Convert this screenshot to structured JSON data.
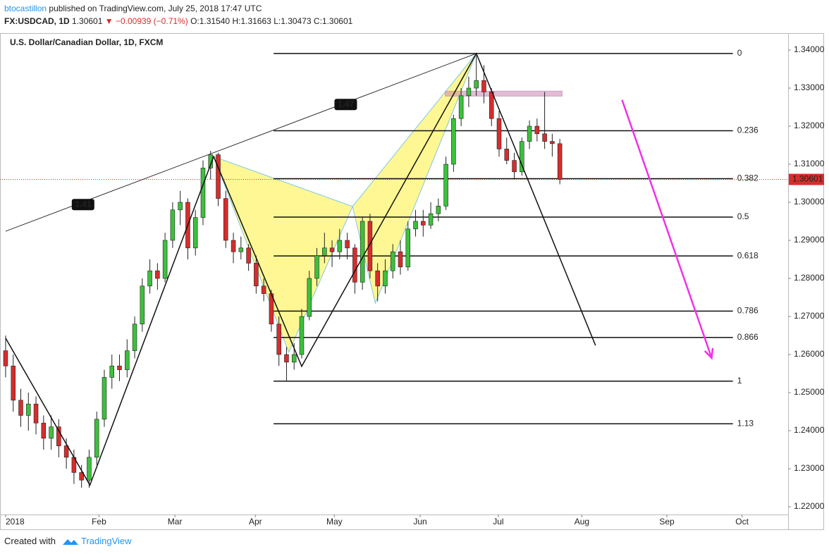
{
  "header": {
    "author": "btocastillon",
    "published": "published on TradingView.com, July 25, 2018 17:47 UTC",
    "symbol": "FX:USDCAD, 1D",
    "last": "1.30601",
    "change": "▼ −0.00939 (−0.71%)",
    "open": "O:1.31540",
    "high": "H:1.31663",
    "low": "L:1.30473",
    "close": "C:1.30601"
  },
  "footer": {
    "created": "Created with",
    "brand": "TradingView"
  },
  "chart_data": {
    "type": "candlestick",
    "title": "U.S. Dollar/Canadian Dollar, 1D, FXCM",
    "up_color": "#3cc03c",
    "down_color": "#d82c2c",
    "xlim": [
      -0.74,
      103.07
    ],
    "ylim": [
      1.21796,
      1.34426
    ],
    "xticks": [
      {
        "value": 0,
        "label": "2018"
      },
      {
        "value": 12.3,
        "label": "Feb"
      },
      {
        "value": 22.3,
        "label": "Mar"
      },
      {
        "value": 32.9,
        "label": "Apr"
      },
      {
        "value": 43.3,
        "label": "May"
      },
      {
        "value": 54.6,
        "label": "Jun"
      },
      {
        "value": 64.9,
        "label": "Jul"
      },
      {
        "value": 75.9,
        "label": "Aug"
      },
      {
        "value": 87.1,
        "label": "Sep"
      },
      {
        "value": 97,
        "label": "Oct"
      }
    ],
    "yticks": [
      {
        "value": 1.22,
        "label": "1.22000"
      },
      {
        "value": 1.23,
        "label": "1.23000"
      },
      {
        "value": 1.24,
        "label": "1.24000"
      },
      {
        "value": 1.25,
        "label": "1.25000"
      },
      {
        "value": 1.26,
        "label": "1.26000"
      },
      {
        "value": 1.27,
        "label": "1.27000"
      },
      {
        "value": 1.28,
        "label": "1.28000"
      },
      {
        "value": 1.29,
        "label": "1.29000"
      },
      {
        "value": 1.3,
        "label": "1.30000"
      },
      {
        "value": 1.31,
        "label": "1.31000"
      },
      {
        "value": 1.32,
        "label": "1.32000"
      },
      {
        "value": 1.33,
        "label": "1.33000"
      },
      {
        "value": 1.34,
        "label": "1.34000"
      }
    ],
    "ohlc": [
      [
        1.261,
        1.265,
        1.254,
        1.257
      ],
      [
        1.257,
        1.26,
        1.245,
        1.248
      ],
      [
        1.248,
        1.251,
        1.241,
        1.244
      ],
      [
        1.244,
        1.25,
        1.24,
        1.247
      ],
      [
        1.247,
        1.249,
        1.239,
        1.242
      ],
      [
        1.242,
        1.244,
        1.235,
        1.238
      ],
      [
        1.238,
        1.244,
        1.235,
        1.241
      ],
      [
        1.241,
        1.243,
        1.233,
        1.236
      ],
      [
        1.236,
        1.238,
        1.23,
        1.233
      ],
      [
        1.233,
        1.235,
        1.226,
        1.229
      ],
      [
        1.229,
        1.231,
        1.225,
        1.227
      ],
      [
        1.227,
        1.235,
        1.225,
        1.233
      ],
      [
        1.233,
        1.245,
        1.231,
        1.243
      ],
      [
        1.243,
        1.256,
        1.241,
        1.254
      ],
      [
        1.254,
        1.26,
        1.251,
        1.257
      ],
      [
        1.257,
        1.26,
        1.253,
        1.256
      ],
      [
        1.256,
        1.264,
        1.254,
        1.261
      ],
      [
        1.261,
        1.27,
        1.259,
        1.268
      ],
      [
        1.268,
        1.28,
        1.266,
        1.278
      ],
      [
        1.278,
        1.285,
        1.276,
        1.282
      ],
      [
        1.282,
        1.284,
        1.277,
        1.28
      ],
      [
        1.28,
        1.292,
        1.279,
        1.29
      ],
      [
        1.29,
        1.3,
        1.288,
        1.298
      ],
      [
        1.298,
        1.303,
        1.294,
        1.3
      ],
      [
        1.3,
        1.301,
        1.285,
        1.288
      ],
      [
        1.288,
        1.298,
        1.286,
        1.296
      ],
      [
        1.296,
        1.311,
        1.294,
        1.309
      ],
      [
        1.309,
        1.3135,
        1.306,
        1.3125
      ],
      [
        1.3125,
        1.313,
        1.299,
        1.301
      ],
      [
        1.301,
        1.303,
        1.288,
        1.29
      ],
      [
        1.29,
        1.292,
        1.284,
        1.287
      ],
      [
        1.287,
        1.291,
        1.285,
        1.288
      ],
      [
        1.288,
        1.289,
        1.282,
        1.284
      ],
      [
        1.284,
        1.286,
        1.276,
        1.278
      ],
      [
        1.278,
        1.28,
        1.274,
        1.276
      ],
      [
        1.276,
        1.277,
        1.266,
        1.268
      ],
      [
        1.268,
        1.27,
        1.257,
        1.26
      ],
      [
        1.26,
        1.262,
        1.253,
        1.258
      ],
      [
        1.258,
        1.263,
        1.256,
        1.26
      ],
      [
        1.26,
        1.272,
        1.259,
        1.27
      ],
      [
        1.27,
        1.282,
        1.269,
        1.28
      ],
      [
        1.28,
        1.288,
        1.278,
        1.286
      ],
      [
        1.286,
        1.292,
        1.284,
        1.288
      ],
      [
        1.288,
        1.29,
        1.283,
        1.287
      ],
      [
        1.287,
        1.293,
        1.285,
        1.29
      ],
      [
        1.29,
        1.292,
        1.285,
        1.288
      ],
      [
        1.288,
        1.289,
        1.276,
        1.279
      ],
      [
        1.279,
        1.296,
        1.277,
        1.295
      ],
      [
        1.295,
        1.297,
        1.28,
        1.282
      ],
      [
        1.282,
        1.284,
        1.274,
        1.278
      ],
      [
        1.278,
        1.285,
        1.276,
        1.282
      ],
      [
        1.282,
        1.289,
        1.28,
        1.287
      ],
      [
        1.287,
        1.29,
        1.281,
        1.283
      ],
      [
        1.283,
        1.295,
        1.282,
        1.293
      ],
      [
        1.293,
        1.298,
        1.291,
        1.295
      ],
      [
        1.295,
        1.298,
        1.291,
        1.294
      ],
      [
        1.294,
        1.3,
        1.293,
        1.297
      ],
      [
        1.297,
        1.301,
        1.295,
        1.299
      ],
      [
        1.299,
        1.312,
        1.298,
        1.31
      ],
      [
        1.31,
        1.323,
        1.308,
        1.322
      ],
      [
        1.322,
        1.33,
        1.32,
        1.328
      ],
      [
        1.328,
        1.333,
        1.325,
        1.33
      ],
      [
        1.33,
        1.3386,
        1.328,
        1.332
      ],
      [
        1.332,
        1.336,
        1.326,
        1.329
      ],
      [
        1.329,
        1.33,
        1.32,
        1.322
      ],
      [
        1.322,
        1.324,
        1.312,
        1.314
      ],
      [
        1.314,
        1.317,
        1.31,
        1.311
      ],
      [
        1.311,
        1.313,
        1.306,
        1.308
      ],
      [
        1.308,
        1.317,
        1.307,
        1.316
      ],
      [
        1.316,
        1.3215,
        1.314,
        1.32
      ],
      [
        1.32,
        1.322,
        1.316,
        1.318
      ],
      [
        1.318,
        1.329,
        1.314,
        1.316
      ],
      [
        1.316,
        1.318,
        1.312,
        1.3154
      ],
      [
        1.3154,
        1.31663,
        1.30473,
        1.30601
      ]
    ],
    "last_price": 1.30601,
    "last_price_label": "1.30601",
    "fib": {
      "x": [
        35.3,
        95.8
      ],
      "levels": [
        0,
        0.236,
        0.382,
        0.5,
        0.618,
        0.786,
        0.866,
        1,
        1.13
      ],
      "prices": [
        1.3391,
        1.3188,
        1.3062,
        1.2961,
        1.2859,
        1.2714,
        1.2645,
        1.253,
        1.2418
      ]
    },
    "zigzag": {
      "x": [
        0,
        11.1,
        27.4,
        39,
        62,
        77.7
      ],
      "y": [
        1.2643,
        1.2257,
        1.312,
        1.2569,
        1.3391,
        1.2624
      ]
    },
    "pattern": {
      "x": [
        27.4,
        37.3,
        45.7,
        48.7,
        62
      ],
      "y": [
        1.312,
        1.2606,
        1.2989,
        1.2735,
        1.3391
      ]
    },
    "trendline": {
      "x": [
        0,
        62
      ],
      "y": [
        1.2924,
        1.3391
      ],
      "labels": [
        "1.41",
        "1.47"
      ],
      "label_x": [
        10.2,
        44.8
      ],
      "label_y": [
        1.2994,
        1.3257
      ]
    },
    "zone": {
      "x": [
        57.9,
        73.3
      ],
      "y": [
        1.3292,
        1.3279
      ]
    },
    "arrow": {
      "x": [
        81.2,
        93
      ],
      "y": [
        1.3269,
        1.2591
      ]
    }
  }
}
